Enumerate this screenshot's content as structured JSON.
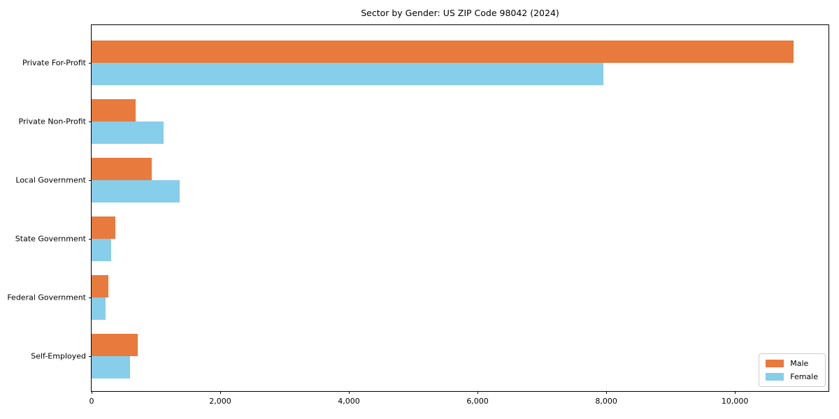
{
  "title": "Sector by Gender: US ZIP Code 98042 (2024)",
  "chart_data": {
    "type": "bar",
    "orientation": "horizontal",
    "title": "Sector by Gender: US ZIP Code 98042 (2024)",
    "xlabel": "",
    "ylabel": "",
    "categories": [
      "Private For-Profit",
      "Private Non-Profit",
      "Local Government",
      "State Government",
      "Federal Government",
      "Self-Employed"
    ],
    "series": [
      {
        "name": "Male",
        "color": "#e87a3d",
        "values": [
          10910,
          690,
          935,
          370,
          260,
          720
        ]
      },
      {
        "name": "Female",
        "color": "#87ceeb",
        "values": [
          7960,
          1120,
          1370,
          300,
          215,
          600
        ]
      }
    ],
    "xlim": [
      0,
      11455
    ],
    "x_ticks": [
      0,
      2000,
      4000,
      6000,
      8000,
      10000
    ],
    "x_tick_labels": [
      "0",
      "2,000",
      "4,000",
      "6,000",
      "8,000",
      "10,000"
    ],
    "grid": false,
    "legend_position": "lower right"
  }
}
